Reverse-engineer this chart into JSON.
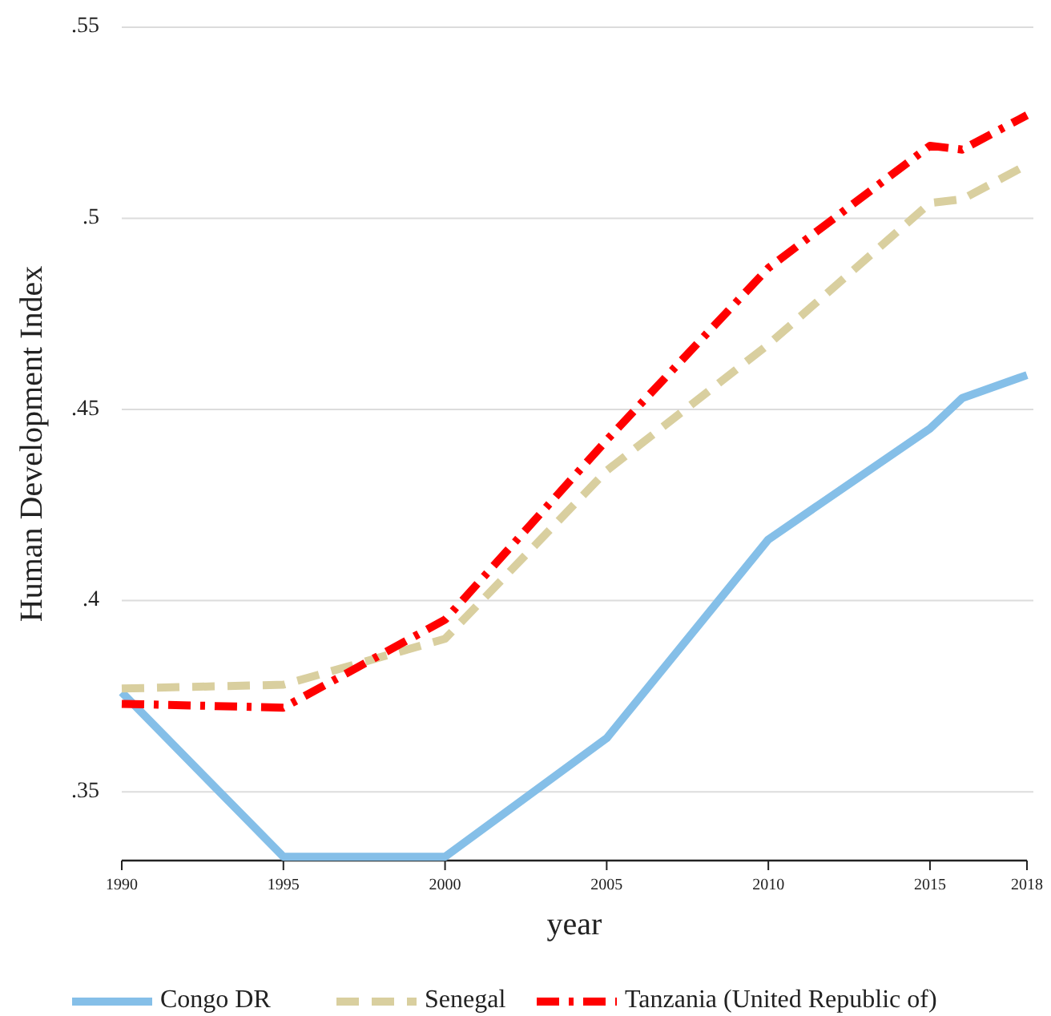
{
  "chart_data": {
    "type": "line",
    "xlabel": "year",
    "ylabel": "Human Development Index",
    "x": [
      1990,
      1995,
      2000,
      2005,
      2010,
      2015,
      2016,
      2018
    ],
    "xlim": [
      1990,
      2018
    ],
    "xticks": [
      1990,
      1995,
      2000,
      2005,
      2010,
      2015,
      2018
    ],
    "ylim": [
      0.332,
      0.55
    ],
    "yticks": [
      {
        "value": 0.35,
        "label": ".35"
      },
      {
        "value": 0.4,
        "label": ".4"
      },
      {
        "value": 0.45,
        "label": ".45"
      },
      {
        "value": 0.5,
        "label": ".5"
      },
      {
        "value": 0.55,
        "label": ".55"
      }
    ],
    "grid": "y",
    "legend": "bottom",
    "series": [
      {
        "name": "Congo DR",
        "color": "#85bfe8",
        "line_style": "solid",
        "values": [
          0.376,
          0.333,
          0.333,
          0.364,
          0.416,
          0.445,
          0.453,
          0.459
        ]
      },
      {
        "name": "Senegal",
        "color": "#d9cf9f",
        "line_style": "dashed",
        "values": [
          0.377,
          0.378,
          0.39,
          0.434,
          0.467,
          0.504,
          0.505,
          0.514
        ]
      },
      {
        "name": "Tanzania (United Republic of)",
        "color": "#ff0000",
        "line_style": "dashdot",
        "values": [
          0.373,
          0.372,
          0.395,
          0.442,
          0.487,
          0.519,
          0.518,
          0.527
        ]
      }
    ]
  }
}
